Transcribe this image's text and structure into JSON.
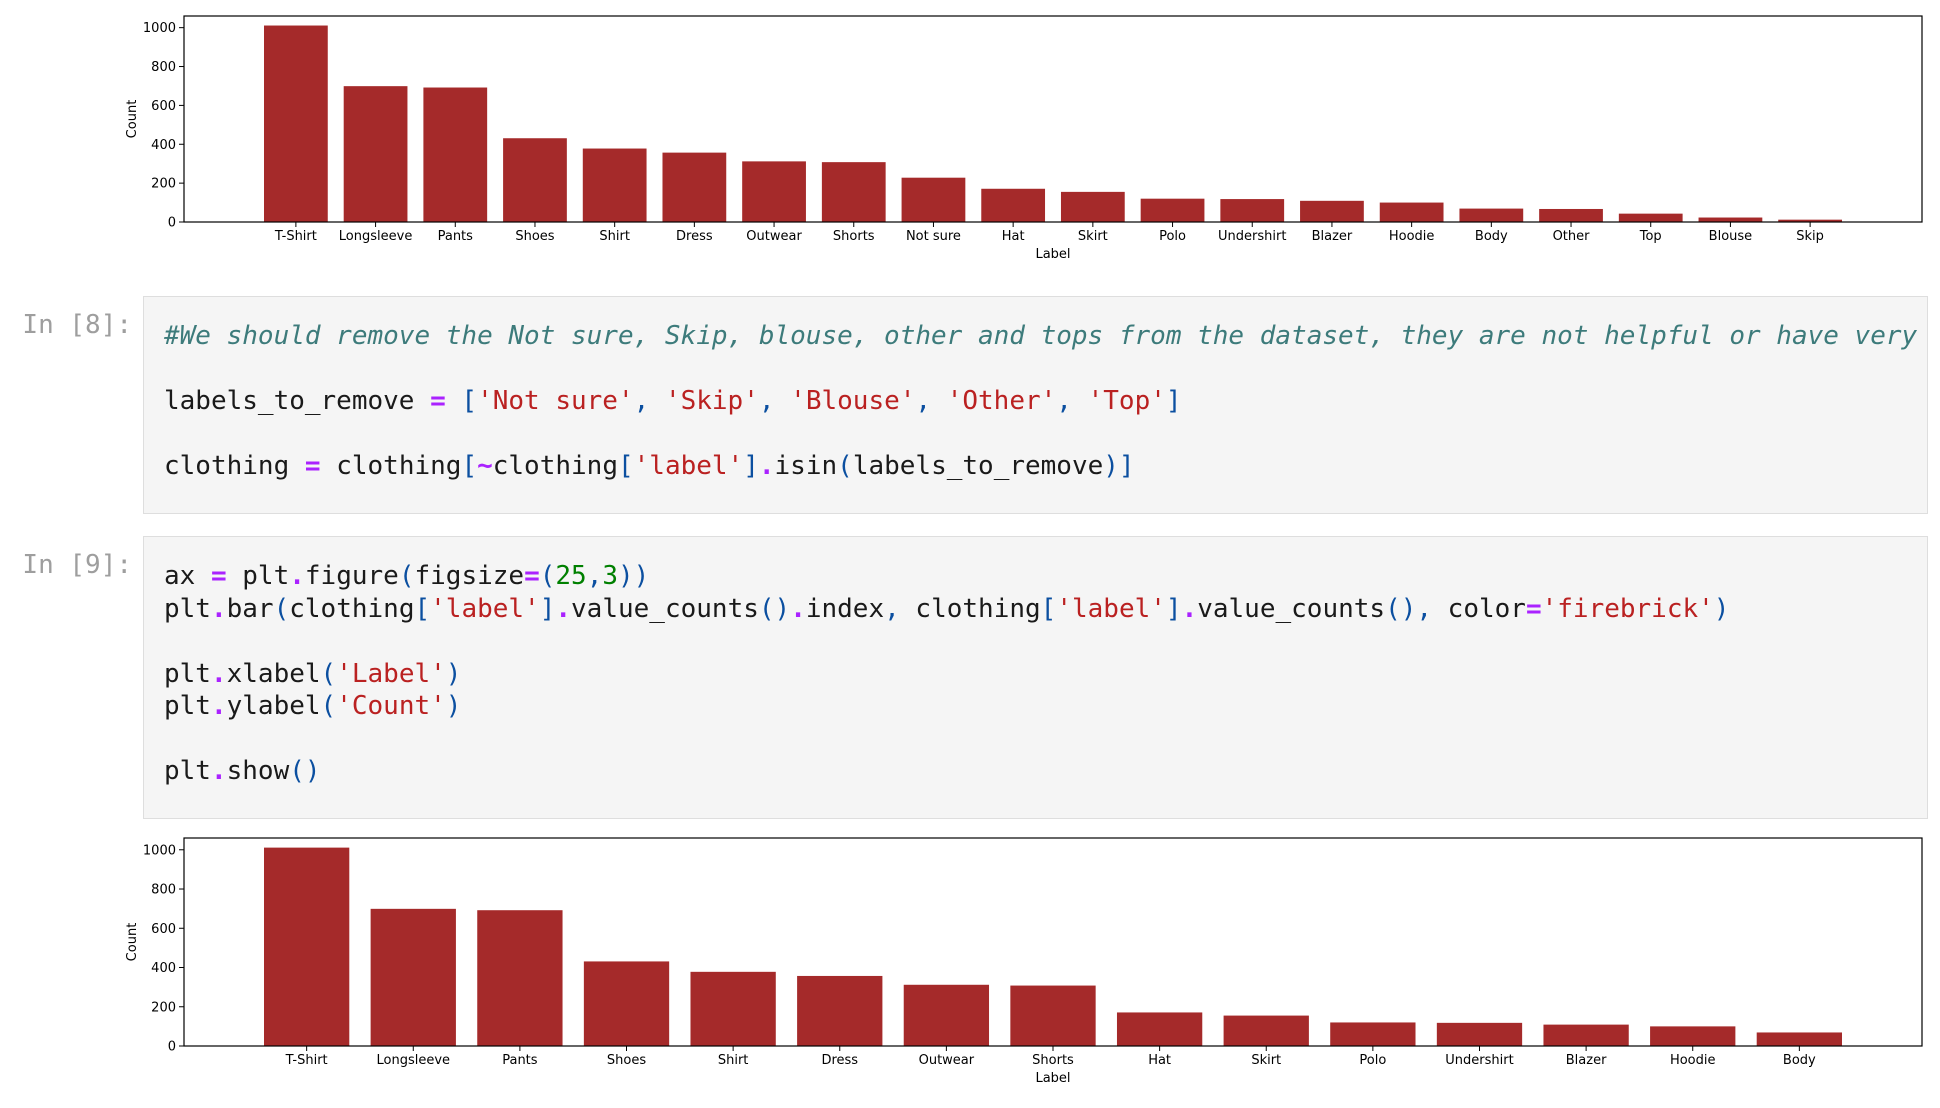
{
  "notebook": {
    "cells": [
      {
        "prompt": "In [8]:",
        "lines": [
          [
            [
              "cm",
              "#We should remove the Not sure, Skip, blouse, other and tops from the dataset, they are not helpful or have very few samples"
            ]
          ],
          [],
          [
            [
              "tx",
              "labels_to_remove "
            ],
            [
              "op",
              "="
            ],
            [
              "tx",
              " "
            ],
            [
              "pn",
              "["
            ],
            [
              "st",
              "'Not sure'"
            ],
            [
              "pn",
              ","
            ],
            [
              "tx",
              " "
            ],
            [
              "st",
              "'Skip'"
            ],
            [
              "pn",
              ","
            ],
            [
              "tx",
              " "
            ],
            [
              "st",
              "'Blouse'"
            ],
            [
              "pn",
              ","
            ],
            [
              "tx",
              " "
            ],
            [
              "st",
              "'Other'"
            ],
            [
              "pn",
              ","
            ],
            [
              "tx",
              " "
            ],
            [
              "st",
              "'Top'"
            ],
            [
              "pn",
              "]"
            ]
          ],
          [],
          [
            [
              "tx",
              "clothing "
            ],
            [
              "op",
              "="
            ],
            [
              "tx",
              " clothing"
            ],
            [
              "pn",
              "["
            ],
            [
              "op",
              "~"
            ],
            [
              "tx",
              "clothing"
            ],
            [
              "pn",
              "["
            ],
            [
              "st",
              "'label'"
            ],
            [
              "pn",
              "]"
            ],
            [
              "op",
              "."
            ],
            [
              "tx",
              "isin"
            ],
            [
              "pn",
              "("
            ],
            [
              "tx",
              "labels_to_remove"
            ],
            [
              "pn",
              ")]"
            ]
          ]
        ]
      },
      {
        "prompt": "In [9]:",
        "lines": [
          [
            [
              "tx",
              "ax "
            ],
            [
              "op",
              "="
            ],
            [
              "tx",
              " plt"
            ],
            [
              "op",
              "."
            ],
            [
              "tx",
              "figure"
            ],
            [
              "pn",
              "("
            ],
            [
              "tx",
              "figsize"
            ],
            [
              "op",
              "="
            ],
            [
              "pn",
              "("
            ],
            [
              "nm",
              "25"
            ],
            [
              "pn",
              ","
            ],
            [
              "nm",
              "3"
            ],
            [
              "pn",
              "))"
            ]
          ],
          [
            [
              "tx",
              "plt"
            ],
            [
              "op",
              "."
            ],
            [
              "tx",
              "bar"
            ],
            [
              "pn",
              "("
            ],
            [
              "tx",
              "clothing"
            ],
            [
              "pn",
              "["
            ],
            [
              "st",
              "'label'"
            ],
            [
              "pn",
              "]"
            ],
            [
              "op",
              "."
            ],
            [
              "tx",
              "value_counts"
            ],
            [
              "pn",
              "()"
            ],
            [
              "op",
              "."
            ],
            [
              "tx",
              "index"
            ],
            [
              "pn",
              ","
            ],
            [
              "tx",
              " clothing"
            ],
            [
              "pn",
              "["
            ],
            [
              "st",
              "'label'"
            ],
            [
              "pn",
              "]"
            ],
            [
              "op",
              "."
            ],
            [
              "tx",
              "value_counts"
            ],
            [
              "pn",
              "(),"
            ],
            [
              "tx",
              " color"
            ],
            [
              "op",
              "="
            ],
            [
              "st",
              "'firebrick'"
            ],
            [
              "pn",
              ")"
            ]
          ],
          [],
          [
            [
              "tx",
              "plt"
            ],
            [
              "op",
              "."
            ],
            [
              "tx",
              "xlabel"
            ],
            [
              "pn",
              "("
            ],
            [
              "st",
              "'Label'"
            ],
            [
              "pn",
              ")"
            ]
          ],
          [
            [
              "tx",
              "plt"
            ],
            [
              "op",
              "."
            ],
            [
              "tx",
              "ylabel"
            ],
            [
              "pn",
              "("
            ],
            [
              "st",
              "'Count'"
            ],
            [
              "pn",
              ")"
            ]
          ],
          [],
          [
            [
              "tx",
              "plt"
            ],
            [
              "op",
              "."
            ],
            [
              "tx",
              "show"
            ],
            [
              "pn",
              "()"
            ]
          ]
        ]
      }
    ]
  },
  "chart_data": [
    {
      "type": "bar",
      "categories": [
        "T-Shirt",
        "Longsleeve",
        "Pants",
        "Shoes",
        "Shirt",
        "Dress",
        "Outwear",
        "Shorts",
        "Not sure",
        "Hat",
        "Skirt",
        "Polo",
        "Undershirt",
        "Blazer",
        "Hoodie",
        "Body",
        "Other",
        "Top",
        "Blouse",
        "Skip"
      ],
      "values": [
        1011,
        699,
        692,
        431,
        378,
        357,
        312,
        308,
        228,
        171,
        155,
        120,
        118,
        109,
        100,
        69,
        67,
        43,
        23,
        12
      ],
      "xlabel": "Label",
      "ylabel": "Count",
      "yticks": [
        "0",
        "200",
        "400",
        "600",
        "800",
        "1000"
      ],
      "ylim": [
        0,
        1060
      ],
      "color": "#a52a2a",
      "grid": false
    },
    {
      "type": "bar",
      "categories": [
        "T-Shirt",
        "Longsleeve",
        "Pants",
        "Shoes",
        "Shirt",
        "Dress",
        "Outwear",
        "Shorts",
        "Hat",
        "Skirt",
        "Polo",
        "Undershirt",
        "Blazer",
        "Hoodie",
        "Body"
      ],
      "values": [
        1011,
        699,
        692,
        431,
        378,
        357,
        312,
        308,
        171,
        155,
        120,
        118,
        109,
        100,
        69
      ],
      "xlabel": "Label",
      "ylabel": "Count",
      "yticks": [
        "0",
        "200",
        "400",
        "600",
        "800",
        "1000"
      ],
      "ylim": [
        0,
        1060
      ],
      "color": "#a52a2a",
      "grid": false
    }
  ]
}
